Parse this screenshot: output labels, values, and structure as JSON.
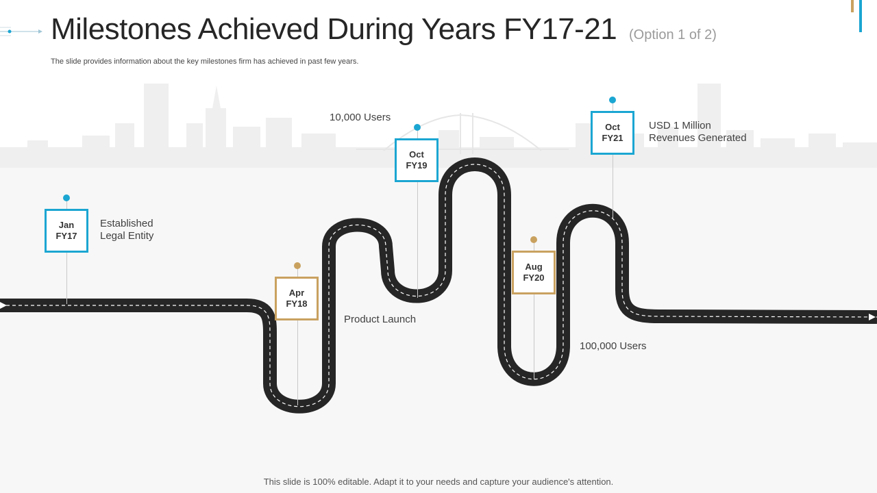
{
  "header": {
    "title": "Milestones Achieved During Years FY17-21",
    "title_suffix": "(Option 1 of 2)",
    "subtitle": "The slide provides information about the key milestones firm has achieved in past few years."
  },
  "colors": {
    "accent_blue": "#1ba6d2",
    "accent_gold": "#c9a15f",
    "road": "#262626"
  },
  "milestones": [
    {
      "month": "Jan",
      "year": "FY17",
      "lines": [
        "Established",
        "Legal Entity"
      ],
      "color": "blue"
    },
    {
      "month": "Apr",
      "year": "FY18",
      "lines": [
        "Product Launch"
      ],
      "color": "gold"
    },
    {
      "month": "Oct",
      "year": "FY19",
      "lines": [
        "10,000 Users"
      ],
      "color": "blue"
    },
    {
      "month": "Aug",
      "year": "FY20",
      "lines": [
        "100,000 Users"
      ],
      "color": "gold"
    },
    {
      "month": "Oct",
      "year": "FY21",
      "lines": [
        "USD 1 Million",
        "Revenues Generated"
      ],
      "color": "blue"
    }
  ],
  "footer": "This slide is 100% editable. Adapt it to your needs and capture your audience's attention."
}
